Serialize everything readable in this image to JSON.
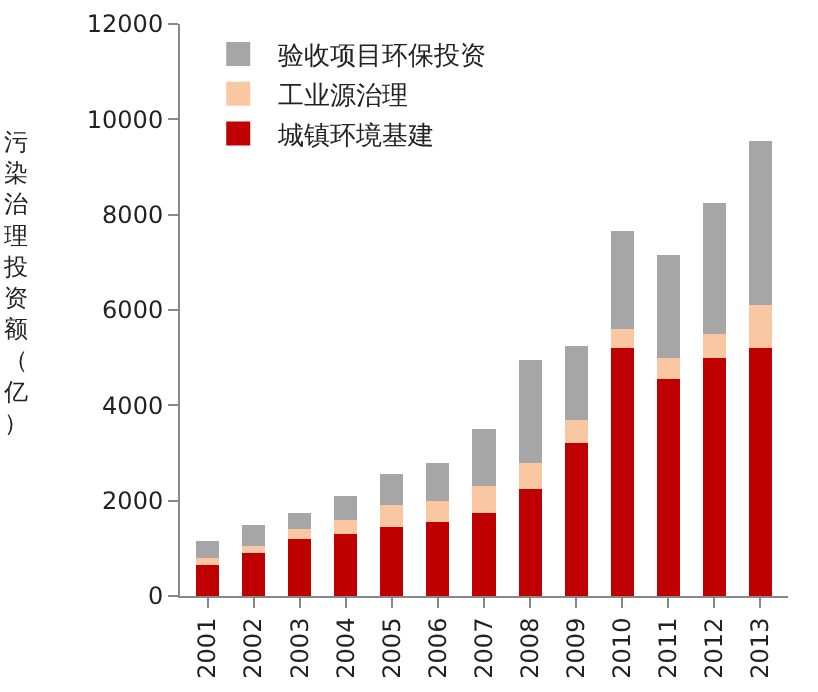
{
  "chart_data": {
    "type": "bar",
    "stacked": true,
    "ylabel": "污染治理投资额（亿）",
    "categories": [
      "2001",
      "2002",
      "2003",
      "2004",
      "2005",
      "2006",
      "2007",
      "2008",
      "2009",
      "2010",
      "2011",
      "2012",
      "2013"
    ],
    "series": [
      {
        "name": "城镇环境基建",
        "color": "#c00000",
        "values": [
          650,
          900,
          1200,
          1300,
          1450,
          1550,
          1750,
          2250,
          3200,
          5200,
          4550,
          5000,
          5200
        ]
      },
      {
        "name": "工业源治理",
        "color": "#f9c7a2",
        "values": [
          150,
          150,
          200,
          300,
          450,
          450,
          550,
          550,
          500,
          400,
          450,
          500,
          900
        ]
      },
      {
        "name": "验收项目环保投资",
        "color": "#a6a6a6",
        "values": [
          350,
          450,
          350,
          500,
          650,
          800,
          1200,
          2150,
          1550,
          2050,
          2150,
          2750,
          3450
        ]
      }
    ],
    "ylim": [
      0,
      12000
    ],
    "yticks": [
      0,
      2000,
      4000,
      6000,
      8000,
      10000,
      12000
    ],
    "grid": false,
    "legend": "top left"
  }
}
